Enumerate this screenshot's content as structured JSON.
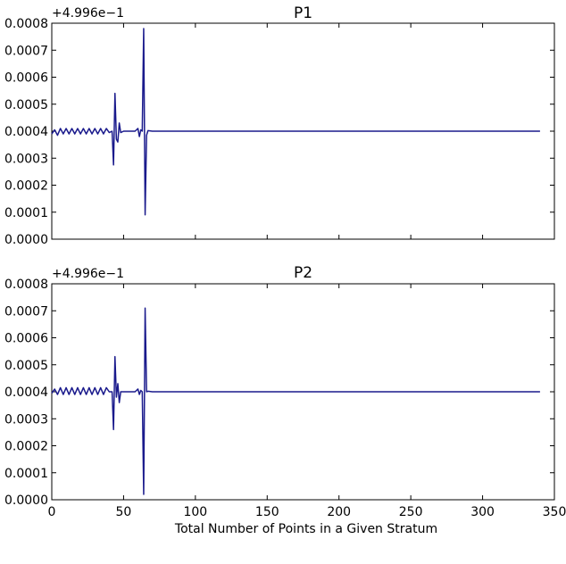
{
  "xlabel": "Total Number of Points in a Given Stratum",
  "x_ticks": [
    "0",
    "50",
    "100",
    "150",
    "200",
    "250",
    "300",
    "350"
  ],
  "chart_data": [
    {
      "type": "line",
      "title": "P1",
      "offset_label": "+4.996e−1",
      "xlabel": "",
      "ylabel": "",
      "xlim": [
        0,
        350
      ],
      "ylim": [
        0.0,
        0.0008
      ],
      "y_ticks": [
        "0.0000",
        "0.0001",
        "0.0002",
        "0.0003",
        "0.0004",
        "0.0005",
        "0.0006",
        "0.0007",
        "0.0008"
      ],
      "grid": false,
      "series": [
        {
          "color": "#1a1a8c",
          "x": [
            0,
            2,
            4,
            6,
            8,
            10,
            12,
            14,
            16,
            18,
            20,
            22,
            24,
            26,
            28,
            30,
            32,
            34,
            36,
            38,
            40,
            42,
            43,
            44,
            45,
            46,
            47,
            48,
            50,
            55,
            58,
            60,
            61,
            62,
            63,
            64,
            65,
            66,
            67,
            70,
            100,
            150,
            200,
            250,
            300,
            340
          ],
          "y": [
            0.00039,
            0.000405,
            0.000385,
            0.00041,
            0.00039,
            0.00041,
            0.00039,
            0.00041,
            0.00039,
            0.00041,
            0.00039,
            0.00041,
            0.00039,
            0.00041,
            0.00039,
            0.00041,
            0.00039,
            0.00041,
            0.00039,
            0.00041,
            0.000395,
            0.0004,
            0.000275,
            0.00054,
            0.00037,
            0.00036,
            0.00043,
            0.000395,
            0.0004,
            0.0004,
            0.0004,
            0.00041,
            0.00038,
            0.000405,
            0.0004,
            0.00078,
            9e-05,
            0.000385,
            0.000402,
            0.0004,
            0.0004,
            0.0004,
            0.0004,
            0.0004,
            0.0004,
            0.0004
          ]
        }
      ]
    },
    {
      "type": "line",
      "title": "P2",
      "offset_label": "+4.996e−1",
      "xlabel": "Total Number of Points in a Given Stratum",
      "ylabel": "",
      "xlim": [
        0,
        350
      ],
      "ylim": [
        0.0,
        0.0008
      ],
      "y_ticks": [
        "0.0000",
        "0.0001",
        "0.0002",
        "0.0003",
        "0.0004",
        "0.0005",
        "0.0006",
        "0.0007",
        "0.0008"
      ],
      "grid": false,
      "series": [
        {
          "color": "#1a1a8c",
          "x": [
            0,
            2,
            4,
            6,
            8,
            10,
            12,
            14,
            16,
            18,
            20,
            22,
            24,
            26,
            28,
            30,
            32,
            34,
            36,
            38,
            40,
            42,
            43,
            44,
            45,
            46,
            47,
            48,
            50,
            55,
            58,
            60,
            61,
            62,
            63,
            64,
            65,
            66,
            67,
            70,
            100,
            150,
            200,
            250,
            300,
            340
          ],
          "y": [
            0.000395,
            0.00041,
            0.00039,
            0.000415,
            0.00039,
            0.000415,
            0.00039,
            0.000415,
            0.00039,
            0.000415,
            0.00039,
            0.000415,
            0.00039,
            0.000415,
            0.00039,
            0.000415,
            0.00039,
            0.000415,
            0.00039,
            0.000415,
            0.0004,
            0.0004,
            0.00026,
            0.00053,
            0.00038,
            0.00043,
            0.00036,
            0.0004,
            0.0004,
            0.0004,
            0.0004,
            0.00041,
            0.00039,
            0.000405,
            0.0004,
            2e-05,
            0.00071,
            0.0004,
            0.000402,
            0.0004,
            0.0004,
            0.0004,
            0.0004,
            0.0004,
            0.0004,
            0.0004
          ]
        }
      ]
    }
  ]
}
